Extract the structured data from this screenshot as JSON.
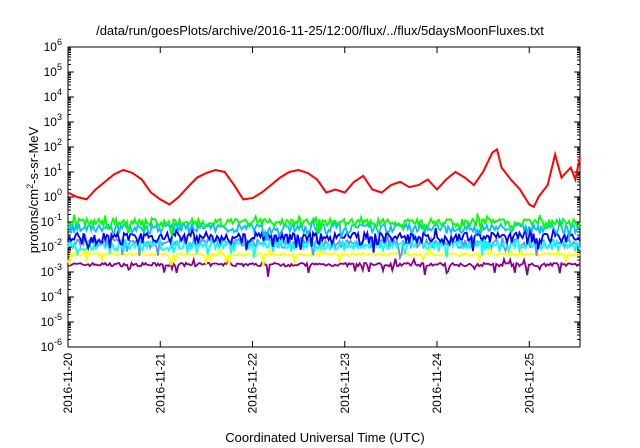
{
  "chart_data": {
    "type": "line",
    "title": "/data/run/goesPlots/archive/2016-11-25/12:00/flux/../flux/5daysMoonFluxes.txt",
    "xlabel": "Coordinated Universal Time (UTC)",
    "ylabel": {
      "main": "protons/cm",
      "sup": "2",
      "rest": "-s-sr-MeV"
    },
    "yscale": "log",
    "ylim_exponents": [
      -6,
      6
    ],
    "y_tick_exponents": [
      -6,
      -5,
      -4,
      -3,
      -2,
      -1,
      0,
      1,
      2,
      3,
      4,
      5,
      6
    ],
    "y_tick_base": "10",
    "x_range_days": [
      0,
      5.55
    ],
    "x_tick_labels": [
      "2016-11-20",
      "2016-11-21",
      "2016-11-22",
      "2016-11-23",
      "2016-11-24",
      "2016-11-25"
    ],
    "x_tick_days": [
      0,
      1,
      2,
      3,
      4,
      5
    ],
    "series": [
      {
        "color": "#ff0000",
        "x": [
          0.0,
          0.1,
          0.2,
          0.3,
          0.4,
          0.5,
          0.6,
          0.7,
          0.8,
          0.9,
          1.0,
          1.1,
          1.2,
          1.3,
          1.4,
          1.5,
          1.6,
          1.7,
          1.8,
          1.9,
          2.0,
          2.1,
          2.2,
          2.3,
          2.4,
          2.5,
          2.6,
          2.7,
          2.8,
          2.9,
          3.0,
          3.1,
          3.2,
          3.3,
          3.4,
          3.5,
          3.6,
          3.7,
          3.8,
          3.9,
          4.0,
          4.1,
          4.2,
          4.3,
          4.4,
          4.5,
          4.6,
          4.65,
          4.7,
          4.8,
          4.9,
          5.0,
          5.05,
          5.1,
          5.2,
          5.28,
          5.35,
          5.45,
          5.5,
          5.55
        ],
        "y": [
          1.5,
          1.0,
          0.8,
          2.0,
          4.0,
          8.0,
          12.0,
          9.0,
          5.0,
          1.5,
          0.8,
          0.5,
          1.0,
          2.5,
          6.0,
          9.0,
          12.0,
          10.0,
          3.0,
          0.8,
          0.9,
          1.5,
          3.0,
          6.0,
          10.0,
          12.0,
          9.0,
          5.0,
          1.5,
          2.0,
          1.5,
          4.0,
          7.0,
          2.0,
          1.5,
          3.0,
          4.0,
          2.5,
          3.0,
          5.0,
          2.0,
          5.0,
          10.0,
          6.0,
          3.0,
          10.0,
          60.0,
          80.0,
          15.0,
          5.0,
          2.0,
          0.5,
          0.4,
          1.0,
          3.0,
          50.0,
          6.0,
          15.0,
          5.0,
          40.0
        ]
      },
      {
        "color": "#00ff00",
        "base": 0.1,
        "amplitude": 0.18
      },
      {
        "color": "#00bfff",
        "base": 0.06,
        "amplitude": 0.22
      },
      {
        "color": "#0000ff",
        "base": 0.025,
        "amplitude": 0.25
      },
      {
        "color": "#00ffff",
        "base": 0.012,
        "amplitude": 0.2
      },
      {
        "color": "#6495ed",
        "base": 0.015,
        "amplitude": 0.2
      },
      {
        "color": "#ffff00",
        "base": 0.005,
        "amplitude": 0.06
      },
      {
        "color": "#8b008b",
        "base": 0.002,
        "amplitude": 0.08
      }
    ]
  }
}
